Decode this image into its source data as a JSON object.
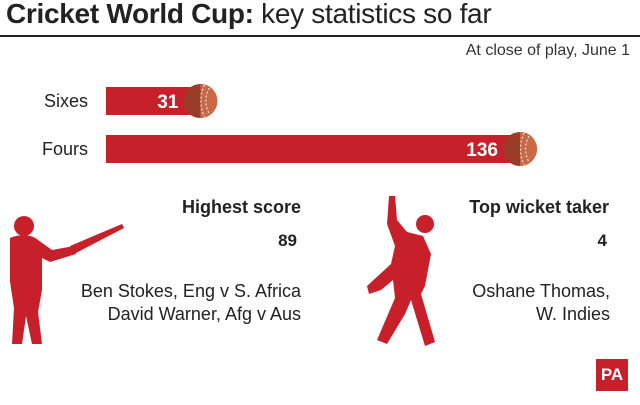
{
  "header": {
    "title_bold": "Cricket World Cup:",
    "title_rest": " key statistics so far",
    "subtitle": "At close of play, June 1"
  },
  "chart_data": {
    "type": "bar",
    "orientation": "horizontal",
    "categories": [
      "Sixes",
      "Fours"
    ],
    "values": [
      31,
      136
    ],
    "bar_color": "#c8202b"
  },
  "stats": {
    "highest_score": {
      "heading": "Highest score",
      "value": "89",
      "lines": [
        "Ben Stokes, Eng v S. Africa",
        "David Warner, Afg v Aus"
      ]
    },
    "top_wicket_taker": {
      "heading": "Top wicket taker",
      "value": "4",
      "lines": [
        "Oshane Thomas,",
        "W. Indies"
      ]
    }
  },
  "logo": {
    "text": "PA"
  },
  "icons": {
    "batsman": "batsman-silhouette-icon",
    "bowler": "bowler-silhouette-icon",
    "ball": "cricket-ball-icon"
  },
  "colors": {
    "accent": "#c8202b",
    "ball_dark": "#9a3c2a",
    "ball_light": "#c86a48",
    "text": "#222222"
  }
}
